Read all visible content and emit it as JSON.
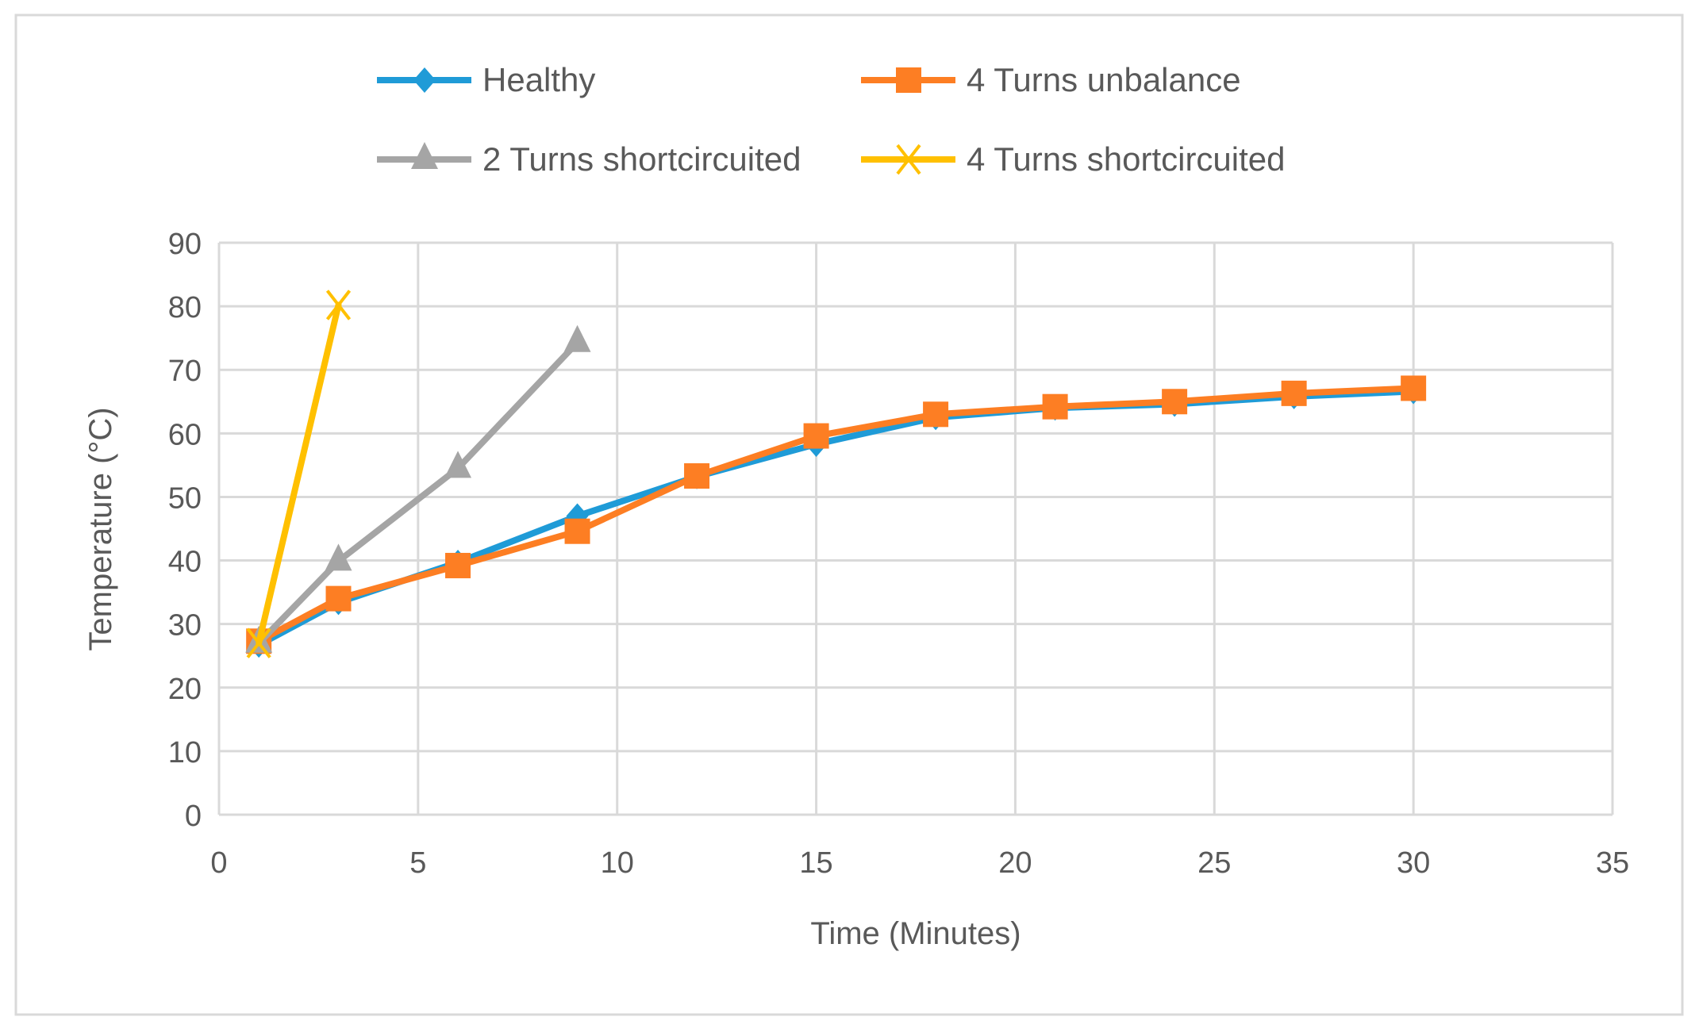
{
  "chart_data": {
    "type": "line",
    "title": "",
    "xlabel": "Time (Minutes)",
    "ylabel": "Temperature (°C)",
    "xlim": [
      0,
      35
    ],
    "ylim": [
      0,
      90
    ],
    "xticks": [
      0,
      5,
      10,
      15,
      20,
      25,
      30,
      35
    ],
    "yticks": [
      0,
      10,
      20,
      30,
      40,
      50,
      60,
      70,
      80,
      90
    ],
    "grid": true,
    "legend_position": "top",
    "series": [
      {
        "name": "Healthy",
        "color": "#1f9bd7",
        "marker": "diamond",
        "x": [
          1,
          3,
          6,
          9,
          12,
          15,
          18,
          21,
          24,
          27,
          30
        ],
        "y": [
          26.7,
          33.4,
          39.7,
          47,
          53.2,
          58.3,
          62.5,
          64,
          64.6,
          65.8,
          66.6
        ]
      },
      {
        "name": "4 Turns unbalance",
        "color": "#fd7e23",
        "marker": "square",
        "x": [
          1,
          3,
          6,
          9,
          12,
          15,
          18,
          21,
          24,
          27,
          30
        ],
        "y": [
          27.3,
          34,
          39.2,
          44.6,
          53.3,
          59.6,
          63,
          64.2,
          65,
          66.3,
          67.1
        ]
      },
      {
        "name": "2 Turns shortcircuited",
        "color": "#a5a5a5",
        "marker": "triangle",
        "x": [
          1,
          3,
          6,
          9
        ],
        "y": [
          27,
          39.9,
          54.5,
          74.3
        ]
      },
      {
        "name": "4 Turns shortcircuited",
        "color": "#ffc000",
        "marker": "x",
        "x": [
          1,
          3
        ],
        "y": [
          27,
          80.2
        ]
      }
    ]
  }
}
